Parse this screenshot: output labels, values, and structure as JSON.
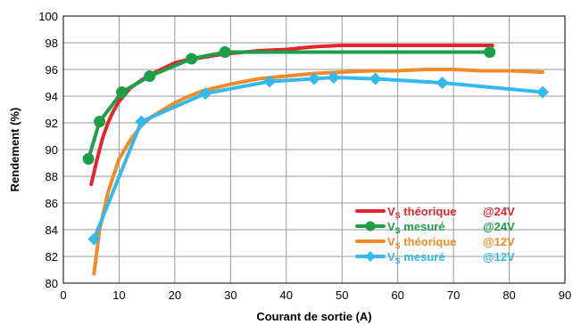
{
  "chart_data": {
    "type": "line",
    "xlabel": "Courant de sortie (A)",
    "ylabel": "Rendement (%)",
    "xlim": [
      0,
      90
    ],
    "ylim": [
      80,
      100
    ],
    "xticks": [
      0,
      10,
      20,
      30,
      40,
      50,
      60,
      70,
      80,
      90
    ],
    "yticks": [
      80,
      82,
      84,
      86,
      88,
      90,
      92,
      94,
      96,
      98,
      100
    ],
    "grid": true,
    "legend_position": "bottom-right",
    "series": [
      {
        "name": "V",
        "name_sub": "S",
        "name_rest": " théorique",
        "voltage": "@24V",
        "color": "#e3262d",
        "marker": "none",
        "x": [
          5,
          6,
          7,
          8,
          9,
          10,
          11,
          12,
          14,
          16,
          18,
          20,
          22,
          25,
          28,
          30,
          35,
          40,
          45,
          50,
          55,
          60,
          65,
          70,
          75,
          77
        ],
        "y": [
          87.4,
          89.2,
          90.8,
          92.0,
          92.9,
          93.6,
          94.1,
          94.6,
          95.2,
          95.7,
          96.1,
          96.5,
          96.7,
          96.9,
          97.1,
          97.2,
          97.4,
          97.5,
          97.7,
          97.8,
          97.8,
          97.8,
          97.8,
          97.8,
          97.8,
          97.8
        ]
      },
      {
        "name": "V",
        "name_sub": "S",
        "name_rest": " mesuré",
        "voltage": "@24V",
        "color": "#1e9e48",
        "marker": "circle",
        "x": [
          4.5,
          6.5,
          10.5,
          15.5,
          23,
          29,
          76.5
        ],
        "y": [
          89.3,
          92.1,
          94.3,
          95.5,
          96.8,
          97.3,
          97.3
        ]
      },
      {
        "name": "V",
        "name_sub": "S",
        "name_rest": " théorique",
        "voltage": "@12V",
        "color": "#f08a2a",
        "marker": "none",
        "x": [
          5.5,
          6.5,
          8,
          10,
          12,
          14,
          16,
          18,
          20,
          22,
          25,
          30,
          35,
          40,
          45,
          50,
          55,
          60,
          65,
          70,
          75,
          80,
          86
        ],
        "y": [
          80.7,
          84.0,
          86.8,
          89.3,
          90.7,
          91.8,
          92.5,
          93.0,
          93.5,
          93.9,
          94.4,
          94.9,
          95.3,
          95.5,
          95.7,
          95.8,
          95.9,
          95.9,
          96.0,
          96.0,
          95.9,
          95.9,
          95.8
        ]
      },
      {
        "name": "V",
        "name_sub": "S",
        "name_rest": " mesuré",
        "voltage": "@12V",
        "color": "#33b9ea",
        "marker": "diamond",
        "x": [
          5.5,
          14,
          25.5,
          37,
          45,
          48.5,
          56,
          68,
          86
        ],
        "y": [
          83.3,
          92.1,
          94.2,
          95.1,
          95.3,
          95.4,
          95.3,
          95.0,
          94.3
        ]
      }
    ]
  }
}
